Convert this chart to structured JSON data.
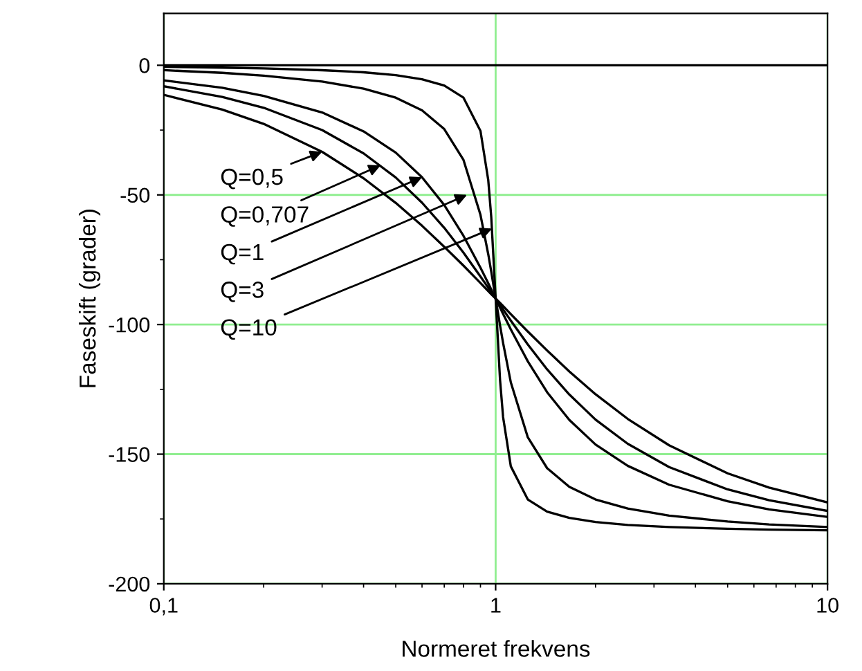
{
  "chart_data": {
    "type": "line",
    "xlabel": "Normeret frekvens",
    "ylabel": "Faseskift (grader)",
    "log": "x",
    "xlim": [
      0.1,
      10
    ],
    "ylim": [
      -200,
      20
    ],
    "xticks": [
      {
        "value": 0.1,
        "label": "0,1"
      },
      1,
      10
    ],
    "yticks": [
      -200,
      -150,
      -100,
      -50,
      0
    ],
    "grid": true,
    "marker": "none",
    "line_style": "solid",
    "x": [
      0.1,
      0.15,
      0.2,
      0.3,
      0.4,
      0.5,
      0.6,
      0.7,
      0.8,
      0.9,
      0.95,
      0.97,
      1,
      1.031,
      1.053,
      1.111,
      1.25,
      1.429,
      1.667,
      2,
      2.5,
      3.333,
      5,
      6.667,
      10
    ],
    "series": [
      {
        "color": "#000000",
        "values": [
          -11.4,
          -17.1,
          -22.6,
          -33.4,
          -43.6,
          -53.1,
          -61.9,
          -70.0,
          -77.3,
          -84.0,
          -87.1,
          -88.3,
          -90,
          -91.7,
          -92.9,
          -96.0,
          -102.7,
          -110.0,
          -118.1,
          -126.9,
          -136.4,
          -146.6,
          -157.4,
          -162.9,
          -168.6
        ]
      },
      {
        "color": "#000000",
        "values": [
          -8.1,
          -12.2,
          -16.4,
          -25.0,
          -34.0,
          -43.3,
          -53.0,
          -62.7,
          -72.3,
          -81.5,
          -85.8,
          -87.5,
          -90,
          -92.5,
          -94.2,
          -98.5,
          -107.7,
          -117.3,
          -127.0,
          -136.7,
          -146.0,
          -155.0,
          -163.6,
          -167.8,
          -171.9
        ]
      },
      {
        "color": "#000000",
        "values": [
          -5.8,
          -8.7,
          -11.8,
          -18.2,
          -25.5,
          -33.7,
          -43.2,
          -53.9,
          -65.8,
          -78.1,
          -84.1,
          -86.5,
          -90,
          -93.5,
          -95.9,
          -101.9,
          -114.2,
          -126.1,
          -136.8,
          -146.3,
          -154.5,
          -161.8,
          -168.2,
          -171.3,
          -174.2
        ]
      },
      {
        "color": "#000000",
        "values": [
          -1.9,
          -2.9,
          -4.0,
          -6.3,
          -9.0,
          -12.5,
          -17.4,
          -24.6,
          -36.5,
          -57.7,
          -72.9,
          -79.6,
          -90,
          -100.4,
          -107.1,
          -122.3,
          -143.5,
          -155.4,
          -162.6,
          -167.5,
          -171.0,
          -173.7,
          -176.0,
          -177.1,
          -178.1
        ]
      },
      {
        "color": "#000000",
        "values": [
          -0.6,
          -0.9,
          -1.2,
          -1.9,
          -2.7,
          -3.8,
          -5.4,
          -7.8,
          -12.5,
          -25.3,
          -44.3,
          -58.6,
          -90,
          -121.4,
          -135.7,
          -154.7,
          -167.5,
          -172.2,
          -174.6,
          -176.2,
          -177.3,
          -178.1,
          -178.8,
          -179.1,
          -179.4
        ]
      }
    ],
    "ref_lines": [
      {
        "axis": "y",
        "value": 0,
        "color": "#000000"
      }
    ],
    "annotations": [
      {
        "text": "Q=0,5",
        "x": 0.3,
        "y": -33.4
      },
      {
        "text": "Q=0,707",
        "x": 0.45,
        "y": -38.6
      },
      {
        "text": "Q=1",
        "x": 0.6,
        "y": -43.2
      },
      {
        "text": "Q=3",
        "x": 0.82,
        "y": -50
      },
      {
        "text": "Q=10",
        "x": 0.975,
        "y": -63
      }
    ]
  }
}
